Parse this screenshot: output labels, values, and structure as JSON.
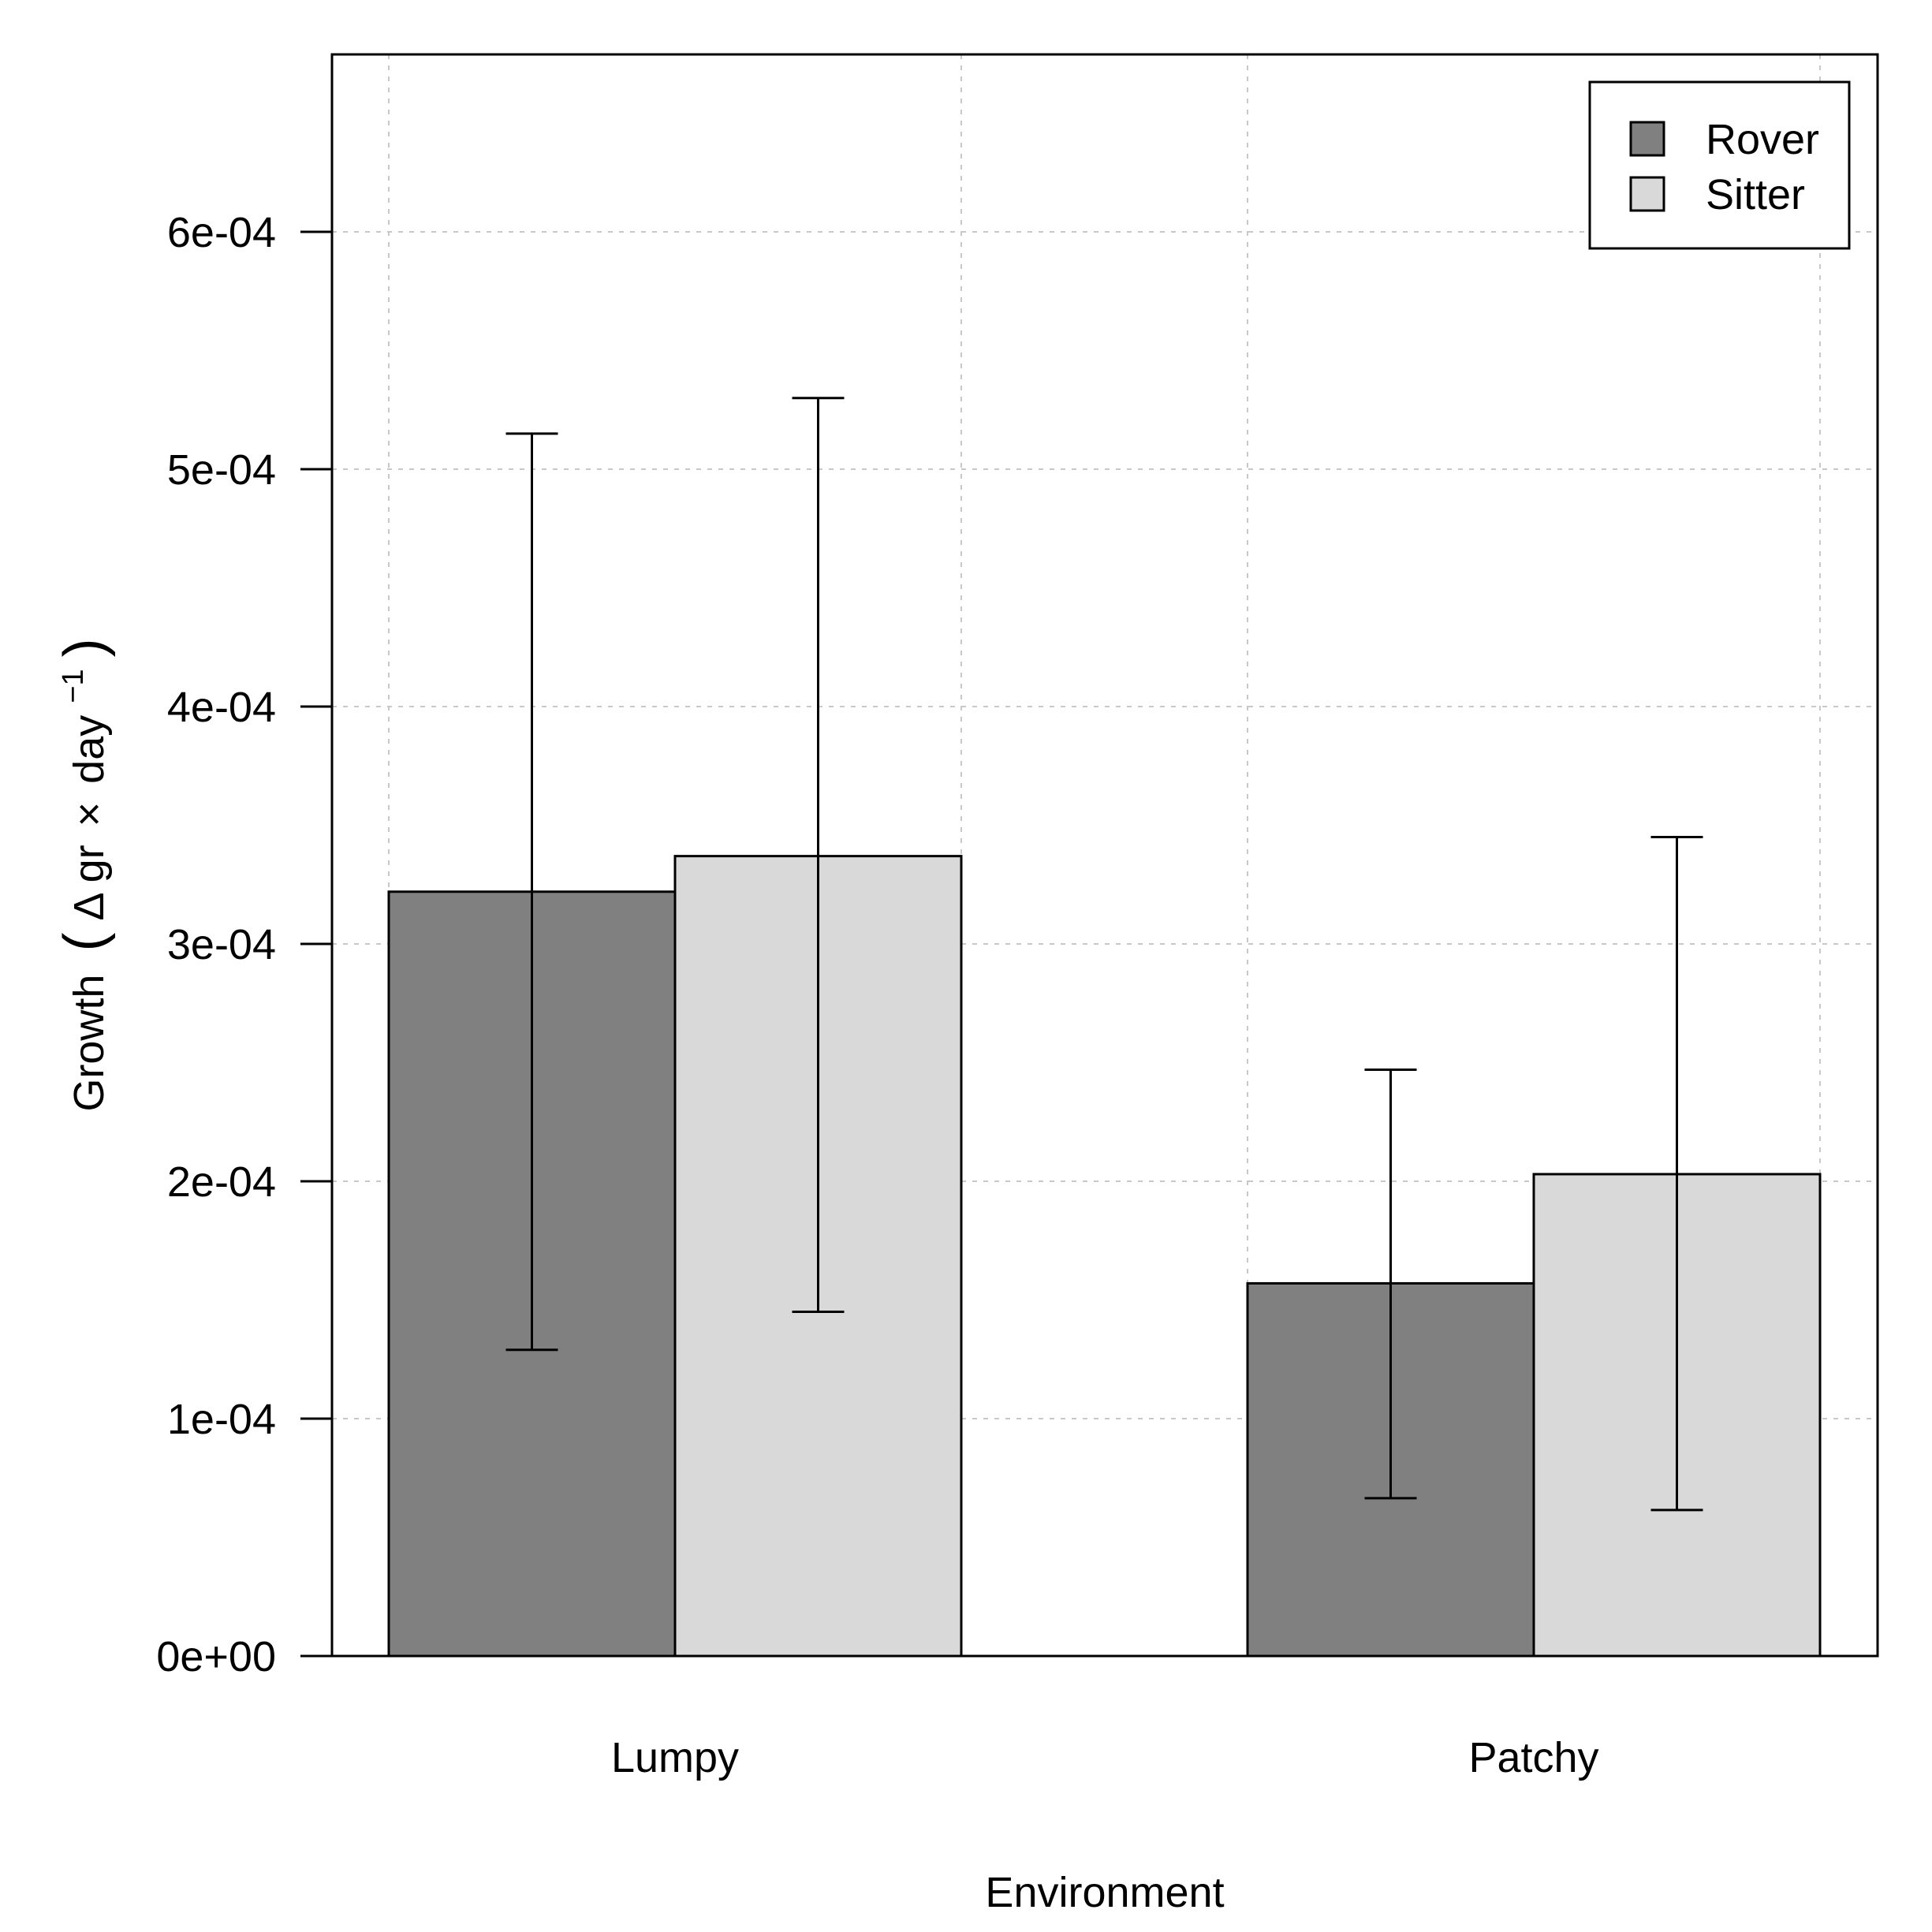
{
  "chart_data": {
    "type": "bar",
    "title": "",
    "xlabel": "Environment",
    "ylabel": {
      "main": "Growth",
      "delta": "Δ",
      "unit_a": "gr",
      "times": "×",
      "unit_b": "day",
      "exponent": "−1",
      "open": "(",
      "close": ")"
    },
    "categories": [
      "Lumpy",
      "Patchy"
    ],
    "series": [
      {
        "name": "Rover",
        "color": "#808080",
        "values": [
          0.000322,
          0.000157
        ],
        "error_low": [
          0.000129,
          6.65e-05
        ],
        "error_high": [
          0.000515,
          0.000247
        ]
      },
      {
        "name": "Sitter",
        "color": "#d9d9d9",
        "values": [
          0.000337,
          0.000203
        ],
        "error_low": [
          0.000145,
          6.15e-05
        ],
        "error_high": [
          0.00053,
          0.000345
        ]
      }
    ],
    "ylim": [
      0,
      0.000675
    ],
    "yticks": [
      {
        "value": 0,
        "label": "0e+00"
      },
      {
        "value": 0.0001,
        "label": "1e-04"
      },
      {
        "value": 0.0002,
        "label": "2e-04"
      },
      {
        "value": 0.0003,
        "label": "3e-04"
      },
      {
        "value": 0.0004,
        "label": "4e-04"
      },
      {
        "value": 0.0005,
        "label": "5e-04"
      },
      {
        "value": 0.0006,
        "label": "6e-04"
      }
    ],
    "grid": true,
    "legend_position": "top-right"
  }
}
